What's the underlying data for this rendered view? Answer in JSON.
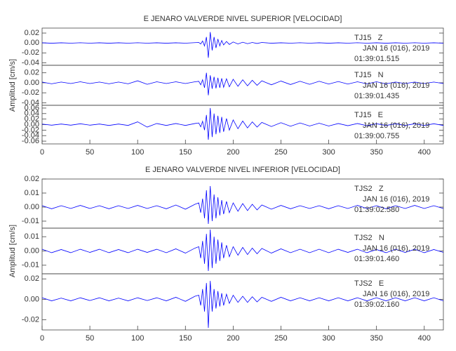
{
  "chart_data": [
    {
      "type": "line",
      "title": "E JENARO VALVERDE NIVEL SUPERIOR [VELOCIDAD]",
      "station": "TJ15   Z",
      "date": "JAN 16 (016), 2019",
      "time": "01:39:01.515",
      "color": "#0000ff",
      "x": [
        0,
        10,
        20,
        30,
        40,
        50,
        60,
        70,
        80,
        90,
        100,
        110,
        120,
        130,
        140,
        150,
        160,
        164,
        166,
        168,
        170,
        172,
        174,
        176,
        178,
        180,
        182,
        184,
        186,
        188,
        190,
        193,
        196,
        200,
        205,
        210,
        215,
        220,
        225,
        230,
        240,
        250,
        260,
        270,
        280,
        290,
        300,
        310,
        320,
        330,
        340,
        350,
        360,
        370,
        380,
        390,
        400,
        410,
        420
      ],
      "values": [
        0.0004,
        -0.0005,
        0.0004,
        -0.0004,
        0.0005,
        -0.0004,
        0.0004,
        -0.0005,
        0.0004,
        -0.0004,
        0.0005,
        -0.0004,
        0.0004,
        -0.0005,
        0.0004,
        -0.0004,
        0.0006,
        0.001,
        -0.002,
        0.004,
        -0.006,
        0.012,
        -0.03,
        0.022,
        -0.015,
        0.012,
        -0.01,
        0.008,
        -0.006,
        0.005,
        -0.004,
        0.003,
        -0.003,
        0.002,
        -0.002,
        0.0015,
        -0.0015,
        0.001,
        -0.001,
        0.001,
        -0.0005,
        0.0004,
        -0.0004,
        0.0005,
        -0.0004,
        0.0004,
        -0.0005,
        0.0004,
        -0.0004,
        0.0005,
        -0.0004,
        0.0004,
        -0.0005,
        0.0004,
        -0.0004,
        0.0005,
        -0.0004,
        0.0004,
        -0.0004
      ],
      "xlim": [
        0,
        420
      ],
      "ylim": [
        -0.045,
        0.03
      ],
      "yticks": [
        -0.04,
        -0.02,
        {
          "value": 0,
          "label": "0.00"
        },
        0.02
      ]
    },
    {
      "type": "line",
      "y_label": "Amplitud [cm/s]",
      "station": "TJ15   N",
      "date": "JAN 16 (016), 2019",
      "time": "01:39:01.435",
      "color": "#0000ff",
      "x": [
        0,
        10,
        20,
        30,
        40,
        50,
        60,
        70,
        80,
        90,
        100,
        110,
        120,
        130,
        140,
        150,
        160,
        164,
        166,
        168,
        170,
        172,
        174,
        176,
        178,
        180,
        182,
        184,
        186,
        188,
        190,
        193,
        196,
        200,
        205,
        210,
        215,
        220,
        225,
        230,
        240,
        250,
        260,
        270,
        280,
        290,
        300,
        310,
        320,
        330,
        340,
        350,
        360,
        370,
        380,
        390,
        400,
        410,
        420
      ],
      "values": [
        0.0015,
        -0.002,
        0.0015,
        -0.0015,
        0.002,
        -0.0015,
        0.0015,
        -0.002,
        0.0015,
        -0.002,
        0.004,
        -0.003,
        0.002,
        -0.0015,
        0.002,
        -0.0015,
        0.002,
        0.003,
        -0.004,
        0.006,
        -0.01,
        0.02,
        -0.025,
        0.015,
        -0.012,
        0.012,
        -0.011,
        0.01,
        -0.01,
        0.009,
        -0.009,
        0.008,
        -0.008,
        0.007,
        -0.007,
        0.006,
        -0.006,
        0.005,
        -0.005,
        0.004,
        -0.004,
        0.0035,
        -0.0035,
        0.003,
        -0.003,
        0.003,
        -0.0025,
        0.0025,
        -0.0025,
        0.002,
        -0.002,
        0.002,
        -0.002,
        0.0015,
        -0.0015,
        0.0015,
        -0.0015,
        0.0015,
        -0.0015
      ],
      "xlim": [
        0,
        420
      ],
      "ylim": [
        -0.045,
        0.035
      ],
      "yticks": [
        -0.04,
        -0.02,
        {
          "value": 0,
          "label": "0.00"
        },
        0.02
      ]
    },
    {
      "type": "line",
      "station": "TJ15   E",
      "date": "JAN 16 (016), 2019",
      "time": "01:39:00.755",
      "color": "#0000ff",
      "x": [
        0,
        10,
        20,
        30,
        40,
        50,
        60,
        70,
        80,
        90,
        100,
        110,
        120,
        130,
        140,
        150,
        160,
        164,
        166,
        168,
        170,
        172,
        174,
        176,
        178,
        180,
        182,
        184,
        186,
        188,
        190,
        193,
        196,
        200,
        205,
        210,
        215,
        220,
        225,
        230,
        240,
        250,
        260,
        270,
        280,
        290,
        300,
        310,
        320,
        330,
        340,
        350,
        360,
        370,
        380,
        390,
        400,
        410,
        420
      ],
      "values": [
        0.002,
        -0.002,
        0.002,
        -0.002,
        0.003,
        -0.002,
        0.002,
        -0.003,
        0.002,
        -0.003,
        0.01,
        -0.009,
        0.004,
        -0.003,
        0.004,
        -0.003,
        0.004,
        0.006,
        -0.008,
        0.012,
        -0.02,
        0.035,
        -0.055,
        0.06,
        -0.045,
        0.04,
        -0.035,
        0.032,
        -0.03,
        0.028,
        -0.026,
        0.022,
        -0.02,
        0.017,
        -0.015,
        0.013,
        -0.012,
        0.01,
        -0.009,
        0.008,
        -0.007,
        0.007,
        -0.006,
        0.006,
        -0.005,
        0.005,
        -0.005,
        0.004,
        -0.004,
        0.004,
        -0.004,
        0.003,
        -0.003,
        0.003,
        -0.003,
        0.003,
        -0.003,
        0.003,
        -0.003
      ],
      "xlim": [
        0,
        420
      ],
      "ylim": [
        -0.07,
        0.07
      ],
      "yticks": [
        -0.06,
        -0.04,
        -0.02,
        {
          "value": 0,
          "label": "0.00"
        },
        0.02,
        0.04,
        0.06
      ],
      "xticks": [
        0,
        50,
        100,
        150,
        200,
        250,
        300,
        350,
        400
      ]
    },
    {
      "type": "line",
      "title": "E JENARO VALVERDE NIVEL INFERIOR [VELOCIDAD]",
      "station": "TJS2   Z",
      "date": "JAN 16 (016), 2019",
      "time": "01:39:02.580",
      "color": "#0000ff",
      "x": [
        0,
        10,
        20,
        30,
        40,
        50,
        60,
        70,
        80,
        90,
        100,
        110,
        120,
        130,
        140,
        150,
        160,
        164,
        166,
        168,
        170,
        172,
        174,
        176,
        178,
        180,
        182,
        184,
        186,
        188,
        190,
        193,
        196,
        200,
        205,
        210,
        215,
        220,
        225,
        230,
        240,
        250,
        260,
        270,
        280,
        290,
        300,
        310,
        320,
        330,
        340,
        350,
        360,
        370,
        380,
        390,
        400,
        410,
        420
      ],
      "values": [
        0.001,
        -0.0012,
        0.001,
        -0.001,
        0.0012,
        -0.001,
        0.001,
        -0.0012,
        0.001,
        -0.001,
        0.0012,
        -0.001,
        0.001,
        -0.0012,
        0.0015,
        -0.0015,
        0.002,
        0.003,
        -0.004,
        0.006,
        -0.008,
        0.012,
        -0.012,
        0.015,
        -0.01,
        0.009,
        -0.008,
        0.007,
        -0.006,
        0.005,
        -0.005,
        0.004,
        -0.004,
        0.003,
        -0.003,
        0.0025,
        -0.0025,
        0.002,
        -0.002,
        0.0015,
        -0.0015,
        0.0012,
        -0.0012,
        0.001,
        -0.001,
        0.001,
        -0.0012,
        0.001,
        -0.001,
        0.0012,
        -0.001,
        0.001,
        -0.0012,
        0.001,
        -0.001,
        0.0012,
        -0.001,
        0.001,
        -0.001
      ],
      "xlim": [
        0,
        420
      ],
      "ylim": [
        -0.015,
        0.02
      ],
      "yticks": [
        -0.01,
        {
          "value": 0,
          "label": "0.00"
        },
        0.01,
        0.02
      ]
    },
    {
      "type": "line",
      "y_label": "Amplitud [cm/s]",
      "station": "TJS2   N",
      "date": "JAN 16 (016), 2019",
      "time": "01:39:01.460",
      "color": "#0000ff",
      "x": [
        0,
        10,
        20,
        30,
        40,
        50,
        60,
        70,
        80,
        90,
        100,
        110,
        120,
        130,
        140,
        150,
        160,
        164,
        166,
        168,
        170,
        172,
        174,
        176,
        178,
        180,
        182,
        184,
        186,
        188,
        190,
        193,
        196,
        200,
        205,
        210,
        215,
        220,
        225,
        230,
        240,
        250,
        260,
        270,
        280,
        290,
        300,
        310,
        320,
        330,
        340,
        350,
        360,
        370,
        380,
        390,
        400,
        410,
        420
      ],
      "values": [
        0.0012,
        -0.0012,
        0.001,
        -0.0012,
        0.0012,
        -0.001,
        0.0012,
        -0.0012,
        0.001,
        -0.0012,
        0.0012,
        -0.001,
        0.0012,
        -0.0012,
        0.0015,
        -0.0015,
        0.002,
        0.003,
        -0.005,
        0.007,
        -0.009,
        0.012,
        -0.014,
        0.015,
        -0.012,
        0.01,
        -0.009,
        0.008,
        -0.007,
        0.006,
        -0.005,
        0.004,
        -0.004,
        0.003,
        -0.003,
        0.0025,
        -0.0025,
        0.002,
        -0.002,
        0.0018,
        -0.0015,
        0.0015,
        -0.0012,
        0.0012,
        -0.0012,
        0.0012,
        -0.0012,
        0.0012,
        -0.001,
        0.0012,
        -0.0012,
        0.001,
        -0.0012,
        0.0012,
        -0.001,
        0.0012,
        -0.0012,
        0.001,
        -0.001
      ],
      "xlim": [
        0,
        420
      ],
      "ylim": [
        -0.016,
        0.016
      ],
      "yticks": [
        -0.01,
        {
          "value": 0,
          "label": "0.00"
        },
        0.01
      ]
    },
    {
      "type": "line",
      "station": "TJS2   E",
      "date": "JAN 16 (016), 2019",
      "time": "01:39:02.160",
      "color": "#0000ff",
      "x": [
        0,
        10,
        20,
        30,
        40,
        50,
        60,
        70,
        80,
        90,
        100,
        110,
        120,
        130,
        140,
        150,
        160,
        164,
        166,
        168,
        170,
        172,
        174,
        176,
        178,
        180,
        182,
        184,
        186,
        188,
        190,
        193,
        196,
        200,
        205,
        210,
        215,
        220,
        225,
        230,
        240,
        250,
        260,
        270,
        280,
        290,
        300,
        310,
        320,
        330,
        340,
        350,
        360,
        370,
        380,
        390,
        400,
        410,
        420
      ],
      "values": [
        0.0015,
        -0.0015,
        0.0012,
        -0.0015,
        0.0015,
        -0.0012,
        0.0015,
        -0.0015,
        0.0012,
        -0.0015,
        0.0015,
        -0.0012,
        0.0015,
        -0.0015,
        0.002,
        -0.002,
        0.003,
        0.004,
        -0.006,
        0.01,
        -0.012,
        0.016,
        -0.028,
        0.018,
        -0.012,
        0.01,
        -0.009,
        0.008,
        -0.007,
        0.006,
        -0.006,
        0.005,
        -0.004,
        0.004,
        -0.003,
        0.003,
        -0.003,
        0.0025,
        -0.0025,
        0.002,
        -0.002,
        0.002,
        -0.0015,
        0.0015,
        -0.0015,
        0.0015,
        -0.0015,
        0.0015,
        -0.0015,
        0.0015,
        -0.0015,
        0.0015,
        -0.0015,
        0.0015,
        -0.0015,
        0.0015,
        -0.0015,
        0.0015,
        -0.0015
      ],
      "xlim": [
        0,
        420
      ],
      "ylim": [
        -0.03,
        0.025
      ],
      "yticks": [
        -0.02,
        {
          "value": 0,
          "label": "0.00"
        },
        0.02
      ],
      "xticks": [
        0,
        50,
        100,
        150,
        200,
        250,
        300,
        350,
        400
      ]
    }
  ]
}
